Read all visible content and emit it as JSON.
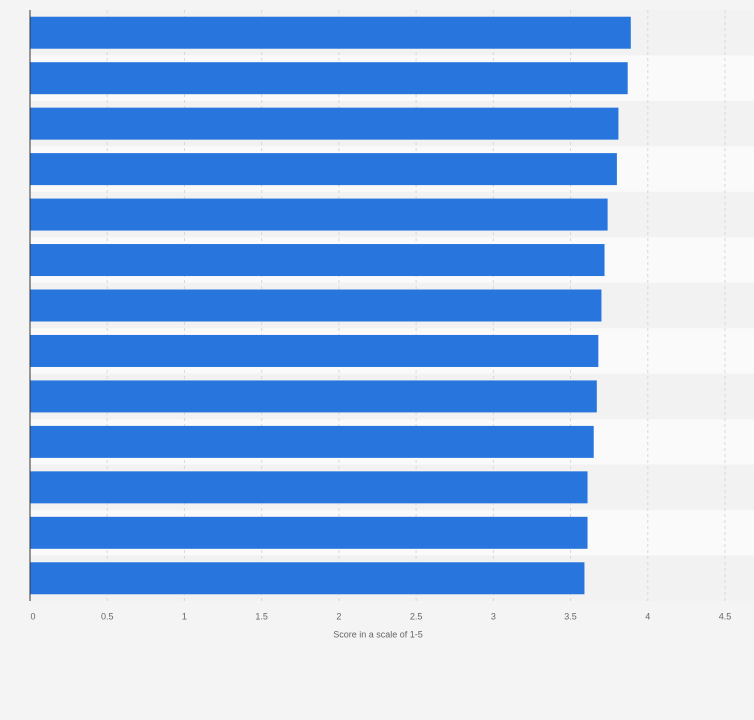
{
  "chart_data": {
    "type": "bar",
    "orientation": "horizontal",
    "x_label": "Score in a scale of 1-5",
    "categories": [
      null,
      null,
      null,
      null,
      null,
      null,
      null,
      null,
      null,
      null,
      null,
      null,
      null
    ],
    "values": [
      3.89,
      3.87,
      3.81,
      3.8,
      3.74,
      3.72,
      3.7,
      3.68,
      3.67,
      3.65,
      3.61,
      3.61,
      3.59
    ],
    "color": "#2876dd",
    "xlim": [
      0,
      4.5
    ],
    "xticks": [
      0,
      0.5,
      1,
      1.5,
      2,
      2.5,
      3,
      3.5,
      4,
      4.5
    ],
    "grid": true
  }
}
